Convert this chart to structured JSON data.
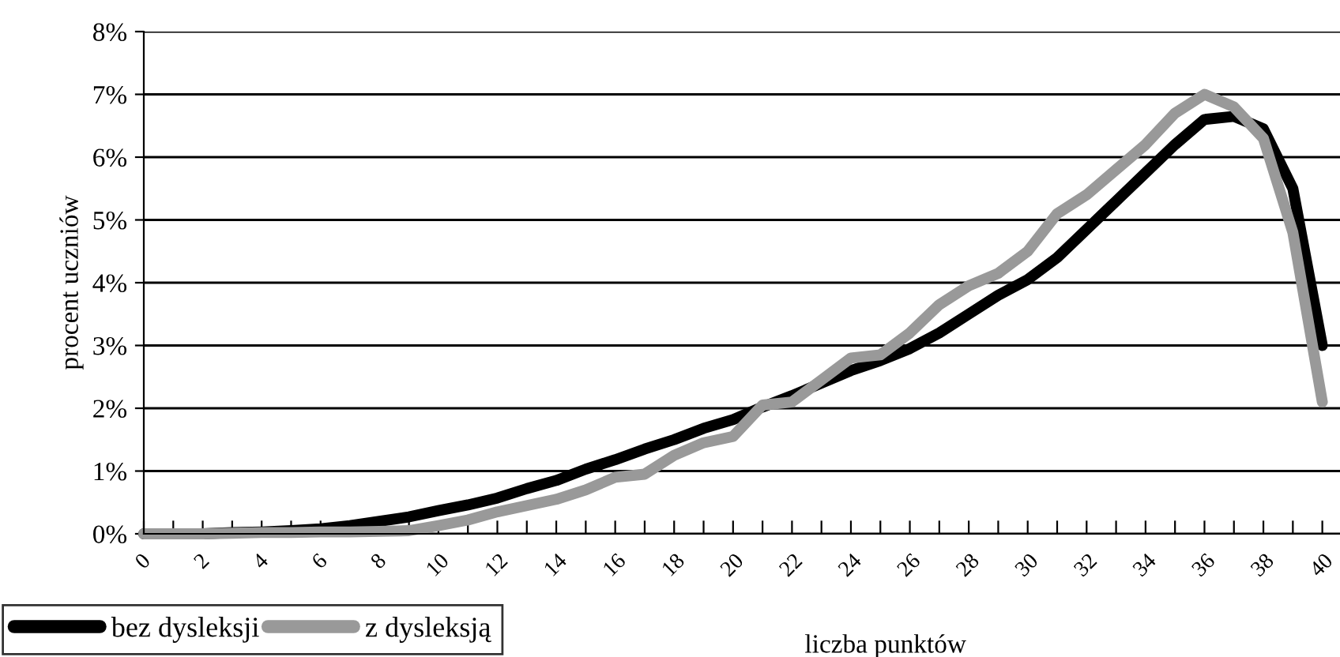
{
  "chart_data": {
    "type": "line",
    "xlabel": "liczba punktów",
    "ylabel": "procent uczniów",
    "x": [
      0,
      1,
      2,
      3,
      4,
      5,
      6,
      7,
      8,
      9,
      10,
      11,
      12,
      13,
      14,
      15,
      16,
      17,
      18,
      19,
      20,
      21,
      22,
      23,
      24,
      25,
      26,
      27,
      28,
      29,
      30,
      31,
      32,
      33,
      34,
      35,
      36,
      37,
      38,
      39,
      40
    ],
    "series": [
      {
        "name": "bez dysleksji",
        "color": "#000000",
        "values": [
          0,
          0,
          0,
          0.02,
          0.03,
          0.05,
          0.08,
          0.13,
          0.2,
          0.27,
          0.37,
          0.46,
          0.57,
          0.72,
          0.85,
          1.03,
          1.18,
          1.35,
          1.5,
          1.68,
          1.82,
          2.02,
          2.2,
          2.4,
          2.6,
          2.76,
          2.95,
          3.2,
          3.5,
          3.8,
          4.05,
          4.4,
          4.85,
          5.3,
          5.75,
          6.2,
          6.6,
          6.65,
          6.45,
          5.5,
          3.0
        ]
      },
      {
        "name": "z dysleksją",
        "color": "#999999",
        "values": [
          0,
          0,
          0,
          0.01,
          0.02,
          0.02,
          0.03,
          0.03,
          0.04,
          0.05,
          0.13,
          0.22,
          0.35,
          0.45,
          0.55,
          0.7,
          0.9,
          0.95,
          1.25,
          1.45,
          1.55,
          2.05,
          2.1,
          2.45,
          2.8,
          2.85,
          3.2,
          3.65,
          3.95,
          4.15,
          4.5,
          5.1,
          5.4,
          5.8,
          6.2,
          6.7,
          7.0,
          6.8,
          6.3,
          4.8,
          2.1
        ]
      }
    ],
    "xlim": [
      0,
      40.6
    ],
    "xticks": [
      0,
      {
        "value": 1,
        "label": null
      },
      2,
      {
        "value": 3,
        "label": null
      },
      4,
      {
        "value": 5,
        "label": null
      },
      6,
      {
        "value": 7,
        "label": null
      },
      8,
      {
        "value": 9,
        "label": null
      },
      10,
      {
        "value": 11,
        "label": null
      },
      12,
      {
        "value": 13,
        "label": null
      },
      14,
      {
        "value": 15,
        "label": null
      },
      16,
      {
        "value": 17,
        "label": null
      },
      18,
      {
        "value": 19,
        "label": null
      },
      20,
      {
        "value": 21,
        "label": null
      },
      22,
      {
        "value": 23,
        "label": null
      },
      24,
      {
        "value": 25,
        "label": null
      },
      26,
      {
        "value": 27,
        "label": null
      },
      28,
      {
        "value": 29,
        "label": null
      },
      30,
      {
        "value": 31,
        "label": null
      },
      32,
      {
        "value": 33,
        "label": null
      },
      34,
      {
        "value": 35,
        "label": null
      },
      36,
      {
        "value": 37,
        "label": null
      },
      38,
      {
        "value": 39,
        "label": null
      },
      40
    ],
    "ylim": [
      0,
      8
    ],
    "yticks": [
      {
        "value": 0,
        "label": "0%"
      },
      {
        "value": 1,
        "label": "1%"
      },
      {
        "value": 2,
        "label": "2%"
      },
      {
        "value": 3,
        "label": "3%"
      },
      {
        "value": 4,
        "label": "4%"
      },
      {
        "value": 5,
        "label": "5%"
      },
      {
        "value": 6,
        "label": "6%"
      },
      {
        "value": 7,
        "label": "7%"
      },
      {
        "value": 8,
        "label": "8%"
      }
    ],
    "grid": "y",
    "legend": "bottom left",
    "marker": "none",
    "line_style": "solid"
  }
}
